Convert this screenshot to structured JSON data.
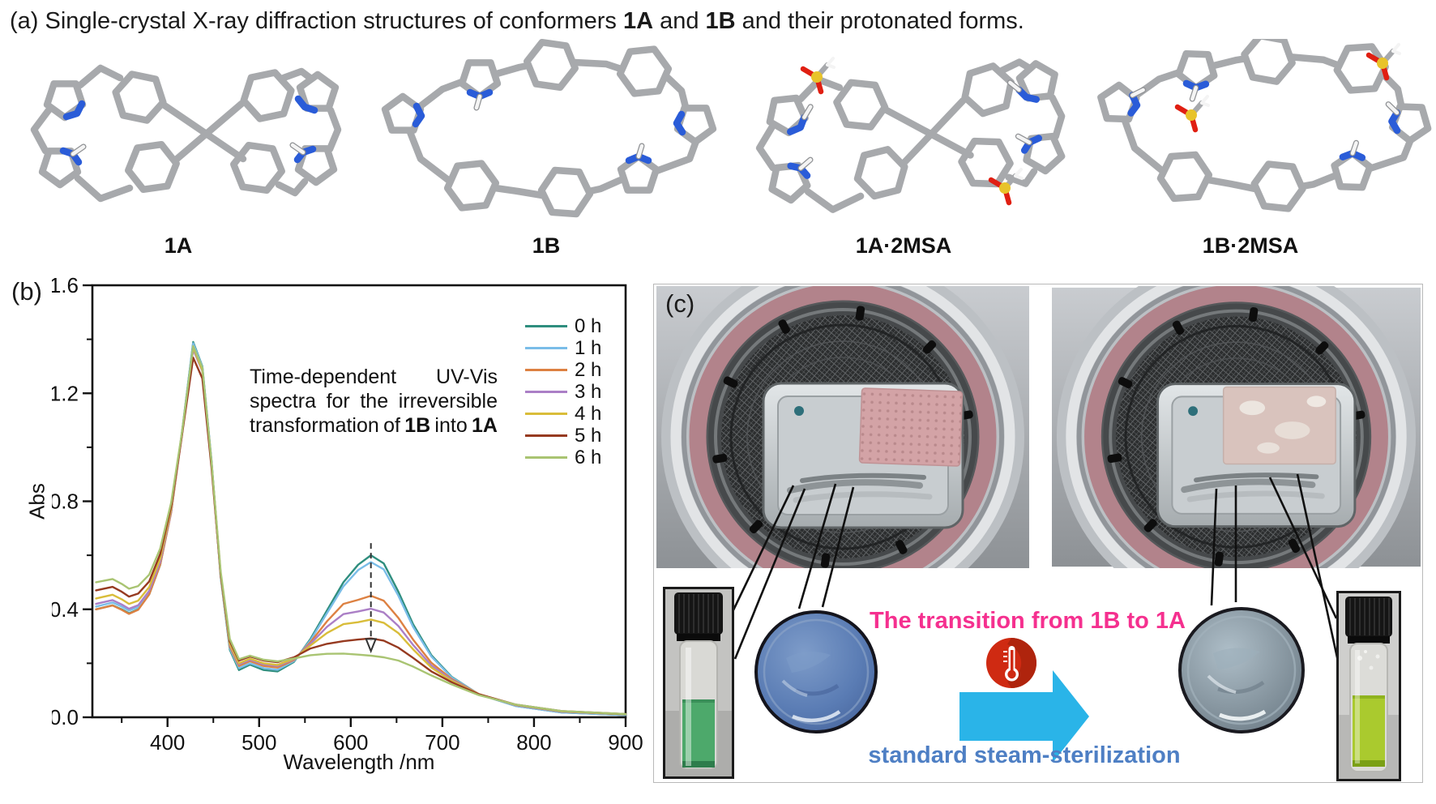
{
  "panel_a": {
    "title_prefix": "(a) Single-crystal X-ray diffraction structures of conformers ",
    "title_bold_1a": "1A",
    "title_and": " and ",
    "title_bold_1b": "1B",
    "title_suffix": " and their protonated forms.",
    "structure_labels": [
      "1A",
      "1B",
      "1A·2MSA",
      "1B·2MSA"
    ],
    "atom_colors": {
      "carbon": "#a7a9ac",
      "nitrogen": "#2a5cd8",
      "hydrogen": "#f4f4f4",
      "sulfur": "#e8c32a",
      "oxygen": "#e01f12"
    }
  },
  "panel_b": {
    "label": "(b)",
    "annotation": {
      "l1a": "Time-dependent",
      "l1b": "UV-Vis",
      "l2a": "spectra",
      "l2b": "for",
      "l2c": "the",
      "l2d": "irreversible",
      "l3a": "transformation",
      "l3b": "of",
      "l3c": "1B",
      "l3d": "into",
      "l3e": "1A"
    }
  },
  "chart_data": {
    "type": "line",
    "title": "Time-dependent UV-Vis spectra for the irreversible transformation of 1B into 1A",
    "xlabel": "Wavelength /nm",
    "ylabel": "Abs",
    "xlim": [
      318,
      900
    ],
    "ylim": [
      0,
      1.6
    ],
    "xticks": [
      400,
      500,
      600,
      700,
      800,
      900
    ],
    "xticks_minor": [
      350,
      450,
      550,
      650,
      750,
      850
    ],
    "yticks": [
      "0.0",
      "0.4",
      "0.8",
      "1.2",
      "1.6"
    ],
    "ytick_values": [
      0.0,
      0.4,
      0.8,
      1.2,
      1.6
    ],
    "yticks_minor": [
      0.2,
      0.6,
      1.0,
      1.4
    ],
    "grid": false,
    "legend_position": "inside top-right",
    "arrow_annotation": {
      "x": 622,
      "y_from": 0.645,
      "y_to": 0.245,
      "style": "dashed, arrowhead down"
    },
    "x": [
      322,
      340,
      350,
      358,
      368,
      380,
      392,
      404,
      416,
      428,
      438,
      448,
      458,
      468,
      478,
      490,
      505,
      520,
      538,
      556,
      574,
      592,
      608,
      622,
      636,
      652,
      668,
      688,
      710,
      740,
      780,
      830,
      900
    ],
    "series": [
      {
        "name": "0 h",
        "color": "#2f8e7e",
        "values": [
          0.4,
          0.415,
          0.4,
          0.385,
          0.4,
          0.455,
          0.565,
          0.76,
          1.06,
          1.39,
          1.3,
          0.95,
          0.52,
          0.25,
          0.175,
          0.195,
          0.175,
          0.17,
          0.205,
          0.29,
          0.395,
          0.5,
          0.565,
          0.6,
          0.57,
          0.465,
          0.345,
          0.23,
          0.15,
          0.085,
          0.042,
          0.018,
          0.008
        ]
      },
      {
        "name": "1 h",
        "color": "#7abde8",
        "values": [
          0.41,
          0.425,
          0.41,
          0.395,
          0.408,
          0.462,
          0.572,
          0.765,
          1.062,
          1.385,
          1.298,
          0.948,
          0.522,
          0.255,
          0.182,
          0.2,
          0.182,
          0.176,
          0.208,
          0.285,
          0.385,
          0.485,
          0.545,
          0.575,
          0.548,
          0.45,
          0.335,
          0.225,
          0.148,
          0.085,
          0.042,
          0.018,
          0.008
        ]
      },
      {
        "name": "2 h",
        "color": "#dd8142",
        "values": [
          0.4,
          0.414,
          0.398,
          0.383,
          0.398,
          0.455,
          0.566,
          0.758,
          1.052,
          1.368,
          1.288,
          0.942,
          0.525,
          0.262,
          0.19,
          0.208,
          0.19,
          0.184,
          0.212,
          0.278,
          0.355,
          0.42,
          0.435,
          0.45,
          0.432,
          0.368,
          0.288,
          0.202,
          0.142,
          0.086,
          0.045,
          0.021,
          0.011
        ]
      },
      {
        "name": "3 h",
        "color": "#ab7fc6",
        "values": [
          0.42,
          0.434,
          0.418,
          0.402,
          0.415,
          0.468,
          0.576,
          0.764,
          1.054,
          1.362,
          1.282,
          0.94,
          0.528,
          0.268,
          0.196,
          0.213,
          0.196,
          0.19,
          0.215,
          0.272,
          0.335,
          0.382,
          0.392,
          0.402,
          0.388,
          0.338,
          0.268,
          0.192,
          0.138,
          0.085,
          0.045,
          0.021,
          0.011
        ]
      },
      {
        "name": "4 h",
        "color": "#d9bd3a",
        "values": [
          0.44,
          0.454,
          0.437,
          0.42,
          0.432,
          0.482,
          0.588,
          0.772,
          1.058,
          1.37,
          1.285,
          0.94,
          0.53,
          0.272,
          0.2,
          0.217,
          0.2,
          0.194,
          0.217,
          0.266,
          0.312,
          0.345,
          0.352,
          0.362,
          0.35,
          0.312,
          0.252,
          0.184,
          0.135,
          0.085,
          0.046,
          0.022,
          0.011
        ]
      },
      {
        "name": "5 h",
        "color": "#963a20",
        "values": [
          0.47,
          0.483,
          0.465,
          0.447,
          0.458,
          0.503,
          0.605,
          0.782,
          1.05,
          1.332,
          1.255,
          0.925,
          0.532,
          0.282,
          0.21,
          0.225,
          0.21,
          0.204,
          0.222,
          0.255,
          0.272,
          0.282,
          0.288,
          0.292,
          0.284,
          0.258,
          0.22,
          0.17,
          0.13,
          0.085,
          0.047,
          0.023,
          0.012
        ]
      },
      {
        "name": "6 h",
        "color": "#a9c472",
        "values": [
          0.5,
          0.512,
          0.494,
          0.476,
          0.486,
          0.528,
          0.625,
          0.795,
          1.06,
          1.375,
          1.295,
          0.945,
          0.54,
          0.29,
          0.215,
          0.228,
          0.213,
          0.207,
          0.218,
          0.23,
          0.235,
          0.236,
          0.232,
          0.228,
          0.222,
          0.21,
          0.188,
          0.155,
          0.122,
          0.082,
          0.047,
          0.023,
          0.012
        ]
      }
    ]
  },
  "panel_c": {
    "label": "(c)",
    "transition_text": "The transition from 1B to 1A",
    "transition_text_color": "#f5308f",
    "sterilization_text": "standard steam-sterilization",
    "sterilization_text_color": "#4e7fc4",
    "arrow_color": "#2ab4e8",
    "thermometer_icon_color": "#cf2a12",
    "left_vial_liquid_color": "#4da96b",
    "right_vial_liquid_color": "#aaca2e",
    "left_disc_color": "#5a7cb4",
    "right_disc_color": "#86959f"
  }
}
